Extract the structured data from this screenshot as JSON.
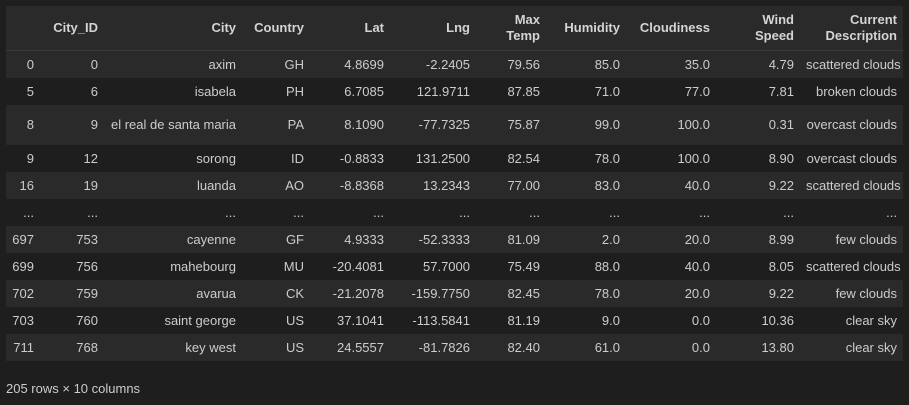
{
  "table": {
    "columns": [
      "",
      "City_ID",
      "City",
      "Country",
      "Lat",
      "Lng",
      "Max Temp",
      "Humidity",
      "Cloudiness",
      "Wind Speed",
      "Current Description"
    ],
    "rows": [
      [
        "0",
        "0",
        "axim",
        "GH",
        "4.8699",
        "-2.2405",
        "79.56",
        "85.0",
        "35.0",
        "4.79",
        "scattered clouds"
      ],
      [
        "5",
        "6",
        "isabela",
        "PH",
        "6.7085",
        "121.9711",
        "87.85",
        "71.0",
        "77.0",
        "7.81",
        "broken clouds"
      ],
      [
        "8",
        "9",
        "el real de santa maria",
        "PA",
        "8.1090",
        "-77.7325",
        "75.87",
        "99.0",
        "100.0",
        "0.31",
        "overcast clouds"
      ],
      [
        "9",
        "12",
        "sorong",
        "ID",
        "-0.8833",
        "131.2500",
        "82.54",
        "78.0",
        "100.0",
        "8.90",
        "overcast clouds"
      ],
      [
        "16",
        "19",
        "luanda",
        "AO",
        "-8.8368",
        "13.2343",
        "77.00",
        "83.0",
        "40.0",
        "9.22",
        "scattered clouds"
      ],
      [
        "...",
        "...",
        "...",
        "...",
        "...",
        "...",
        "...",
        "...",
        "...",
        "...",
        "..."
      ],
      [
        "697",
        "753",
        "cayenne",
        "GF",
        "4.9333",
        "-52.3333",
        "81.09",
        "2.0",
        "20.0",
        "8.99",
        "few clouds"
      ],
      [
        "699",
        "756",
        "mahebourg",
        "MU",
        "-20.4081",
        "57.7000",
        "75.49",
        "88.0",
        "40.0",
        "8.05",
        "scattered clouds"
      ],
      [
        "702",
        "759",
        "avarua",
        "CK",
        "-21.2078",
        "-159.7750",
        "82.45",
        "78.0",
        "20.0",
        "9.22",
        "few clouds"
      ],
      [
        "703",
        "760",
        "saint george",
        "US",
        "37.1041",
        "-113.5841",
        "81.19",
        "9.0",
        "0.0",
        "10.36",
        "clear sky"
      ],
      [
        "711",
        "768",
        "key west",
        "US",
        "24.5557",
        "-81.7826",
        "82.40",
        "61.0",
        "0.0",
        "13.80",
        "clear sky"
      ]
    ]
  },
  "footer": "205 rows × 10 columns"
}
